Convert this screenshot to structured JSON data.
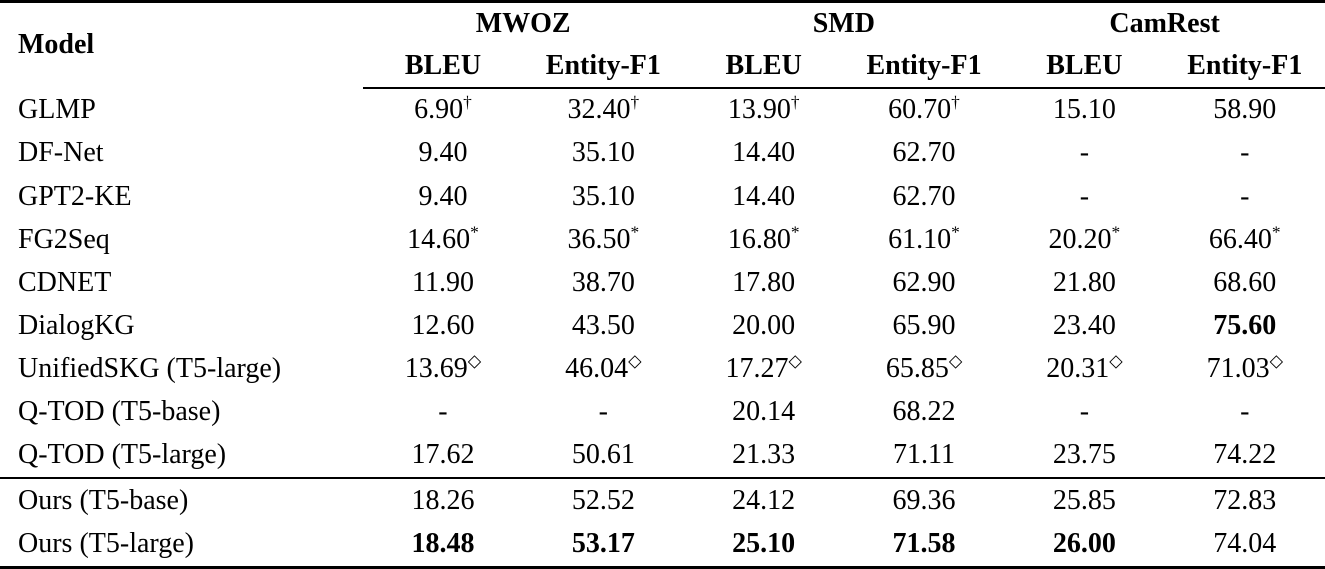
{
  "table": {
    "header": {
      "model": "Model",
      "groups": [
        {
          "label": "MWOZ",
          "subcols": [
            "BLEU",
            "Entity-F1"
          ]
        },
        {
          "label": "SMD",
          "subcols": [
            "BLEU",
            "Entity-F1"
          ]
        },
        {
          "label": "CamRest",
          "subcols": [
            "BLEU",
            "Entity-F1"
          ]
        }
      ]
    },
    "rows": [
      {
        "model": "GLMP",
        "cells": [
          {
            "value": "6.90",
            "sup": "†"
          },
          {
            "value": "32.40",
            "sup": "†"
          },
          {
            "value": "13.90",
            "sup": "†"
          },
          {
            "value": "60.70",
            "sup": "†"
          },
          {
            "value": "15.10"
          },
          {
            "value": "58.90"
          }
        ]
      },
      {
        "model": "DF-Net",
        "cells": [
          {
            "value": "9.40"
          },
          {
            "value": "35.10"
          },
          {
            "value": "14.40"
          },
          {
            "value": "62.70"
          },
          {
            "value": "-"
          },
          {
            "value": "-"
          }
        ]
      },
      {
        "model": "GPT2-KE",
        "cells": [
          {
            "value": "9.40"
          },
          {
            "value": "35.10"
          },
          {
            "value": "14.40"
          },
          {
            "value": "62.70"
          },
          {
            "value": "-"
          },
          {
            "value": "-"
          }
        ]
      },
      {
        "model": "FG2Seq",
        "cells": [
          {
            "value": "14.60",
            "sup": "*"
          },
          {
            "value": "36.50",
            "sup": "*"
          },
          {
            "value": "16.80",
            "sup": "*"
          },
          {
            "value": "61.10",
            "sup": "*"
          },
          {
            "value": "20.20",
            "sup": "*"
          },
          {
            "value": "66.40",
            "sup": "*"
          }
        ]
      },
      {
        "model": "CDNET",
        "cells": [
          {
            "value": "11.90"
          },
          {
            "value": "38.70"
          },
          {
            "value": "17.80"
          },
          {
            "value": "62.90"
          },
          {
            "value": "21.80"
          },
          {
            "value": "68.60"
          }
        ]
      },
      {
        "model": "DialogKG",
        "cells": [
          {
            "value": "12.60"
          },
          {
            "value": "43.50"
          },
          {
            "value": "20.00"
          },
          {
            "value": "65.90"
          },
          {
            "value": "23.40"
          },
          {
            "value": "75.60",
            "bold": true
          }
        ]
      },
      {
        "model": "UnifiedSKG (T5-large)",
        "cells": [
          {
            "value": "13.69",
            "sup": "◇"
          },
          {
            "value": "46.04",
            "sup": "◇"
          },
          {
            "value": "17.27",
            "sup": "◇"
          },
          {
            "value": "65.85",
            "sup": "◇"
          },
          {
            "value": "20.31",
            "sup": "◇"
          },
          {
            "value": "71.03",
            "sup": "◇"
          }
        ]
      },
      {
        "model": "Q-TOD (T5-base)",
        "cells": [
          {
            "value": "-"
          },
          {
            "value": "-"
          },
          {
            "value": "20.14"
          },
          {
            "value": "68.22"
          },
          {
            "value": "-"
          },
          {
            "value": "-"
          }
        ]
      },
      {
        "model": "Q-TOD (T5-large)",
        "cells": [
          {
            "value": "17.62"
          },
          {
            "value": "50.61"
          },
          {
            "value": "21.33"
          },
          {
            "value": "71.11"
          },
          {
            "value": "23.75"
          },
          {
            "value": "74.22"
          }
        ]
      },
      {
        "model": "Ours (T5-base)",
        "section_start": true,
        "cells": [
          {
            "value": "18.26"
          },
          {
            "value": "52.52"
          },
          {
            "value": "24.12"
          },
          {
            "value": "69.36"
          },
          {
            "value": "25.85"
          },
          {
            "value": "72.83"
          }
        ]
      },
      {
        "model": "Ours (T5-large)",
        "cells": [
          {
            "value": "18.48",
            "bold": true
          },
          {
            "value": "53.17",
            "bold": true
          },
          {
            "value": "25.10",
            "bold": true
          },
          {
            "value": "71.58",
            "bold": true
          },
          {
            "value": "26.00",
            "bold": true
          },
          {
            "value": "74.04"
          }
        ]
      }
    ]
  }
}
